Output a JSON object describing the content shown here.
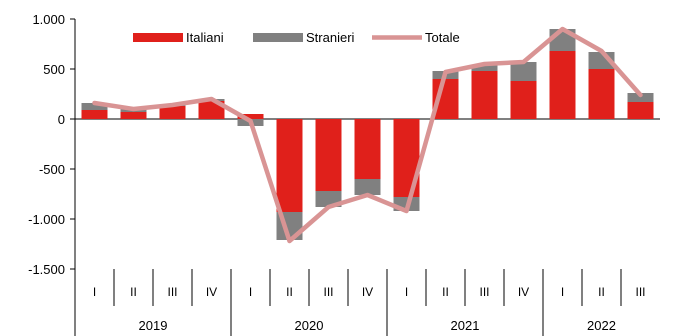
{
  "chart_data": {
    "type": "bar",
    "stacked": true,
    "combined_line": true,
    "title": "",
    "xlabel": "",
    "ylabel": "",
    "ylim": [
      -1500,
      1000
    ],
    "yticks": [
      1000,
      500,
      0,
      -500,
      -1000,
      -1500
    ],
    "ytick_labels": [
      "1.000",
      "500",
      "0",
      "-500",
      "-1.000",
      "-1.500"
    ],
    "grid": false,
    "legend_position": "top-center",
    "quarters": [
      "I",
      "II",
      "III",
      "IV",
      "I",
      "II",
      "III",
      "IV",
      "I",
      "II",
      "III",
      "IV",
      "I",
      "II",
      "III"
    ],
    "years": [
      {
        "label": "2019",
        "quarters": 4
      },
      {
        "label": "2020",
        "quarters": 4
      },
      {
        "label": "2021",
        "quarters": 4
      },
      {
        "label": "2022",
        "quarters": 3
      }
    ],
    "series": [
      {
        "name": "Italiani",
        "kind": "bar",
        "color": "#e0201b",
        "values": [
          90,
          70,
          130,
          180,
          50,
          -930,
          -720,
          -600,
          -780,
          400,
          480,
          380,
          680,
          500,
          170
        ]
      },
      {
        "name": "Stranieri",
        "kind": "bar",
        "color": "#808080",
        "values": [
          70,
          30,
          10,
          20,
          -70,
          -280,
          -160,
          -160,
          -140,
          80,
          60,
          190,
          220,
          170,
          90
        ]
      },
      {
        "name": "Totale",
        "kind": "line",
        "color": "#d99494",
        "values": [
          160,
          100,
          140,
          200,
          -20,
          -1220,
          -880,
          -760,
          -920,
          470,
          550,
          570,
          900,
          680,
          240
        ]
      }
    ]
  }
}
